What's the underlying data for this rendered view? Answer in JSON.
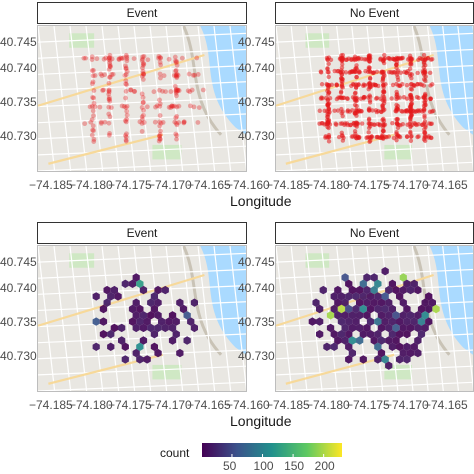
{
  "chart_data": [
    {
      "type": "scatter",
      "layout": "faceted map, 2 panels side by side",
      "panels": [
        {
          "title": "Event",
          "density": "sparse",
          "point_color": "#e41a1c",
          "point_alpha": 0.35
        },
        {
          "title": "No Event",
          "density": "dense",
          "point_color": "#e41a1c",
          "point_alpha": 0.55
        }
      ],
      "xlabel": "Longitude",
      "ylabel": "",
      "x_ticks": [
        "−74.185",
        "−74.180",
        "−74.175",
        "−74.170",
        "−74.165",
        "−74.160"
      ],
      "y_ticks": [
        "40.745",
        "40.740",
        "40.735",
        "40.730"
      ],
      "xlim": [
        -74.187,
        -74.158
      ],
      "ylim": [
        40.7275,
        40.7475
      ],
      "basemap": "street map"
    },
    {
      "type": "heatmap",
      "binning": "hexagonal",
      "layout": "faceted map, 2 panels side by side",
      "panels": [
        {
          "title": "Event",
          "density": "sparse"
        },
        {
          "title": "No Event",
          "density": "dense"
        }
      ],
      "xlabel": "Longitude",
      "ylabel": "",
      "x_ticks": [
        "−74.185",
        "−74.180",
        "−74.175",
        "−74.170",
        "−74.165",
        "−74.160"
      ],
      "y_ticks": [
        "40.745",
        "40.740",
        "40.735",
        "40.730"
      ],
      "xlim": [
        -74.187,
        -74.158
      ],
      "ylim": [
        40.7275,
        40.7475
      ],
      "basemap": "street map",
      "legend": {
        "title": "count",
        "position": "bottom",
        "ticks": [
          "50",
          "100",
          "150",
          "200"
        ],
        "tick_values": [
          50,
          100,
          150,
          200
        ],
        "range": [
          1,
          230
        ],
        "colors": [
          "#440154",
          "#3b528b",
          "#21918c",
          "#5ec962",
          "#fde725"
        ]
      }
    }
  ]
}
